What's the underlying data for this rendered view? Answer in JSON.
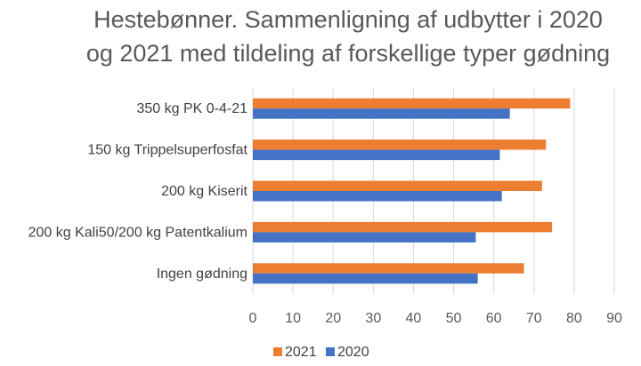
{
  "chart_data": {
    "type": "bar",
    "orientation": "horizontal",
    "title_lines": [
      "Hestebønner. Sammenligning af udbytter i 2020",
      "og 2021 med tildeling af forskellige typer gødning"
    ],
    "categories": [
      "350 kg PK 0-4-21",
      "150 kg Trippelsuperfosfat",
      "200 kg Kiserit",
      "200 kg Kali50/200 kg Patentkalium",
      "Ingen gødning"
    ],
    "series": [
      {
        "name": "2021",
        "color": "#ED7D31",
        "values": [
          79,
          73,
          72,
          74.5,
          67.5
        ]
      },
      {
        "name": "2020",
        "color": "#4472C4",
        "values": [
          64,
          61.5,
          62,
          55.5,
          56
        ]
      }
    ],
    "xlim": [
      0,
      90
    ],
    "ticks": [
      "0",
      "10",
      "20",
      "30",
      "40",
      "50",
      "60",
      "70",
      "80",
      "90"
    ],
    "grid": true,
    "legend_position": "bottom"
  }
}
